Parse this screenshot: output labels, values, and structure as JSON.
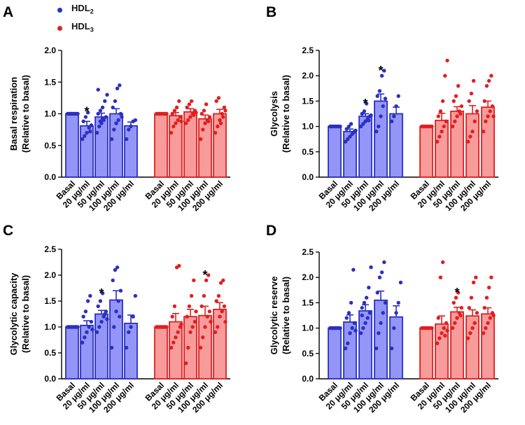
{
  "legend": [
    {
      "label": "HDL",
      "sub": "2",
      "color": "#2b2fc2"
    },
    {
      "label": "HDL",
      "sub": "3",
      "color": "#e11f1f"
    }
  ],
  "colors": {
    "hdl2_fill": "#9396f6",
    "hdl2_edge": "#2b2fc2",
    "hdl3_fill": "#f79b9b",
    "hdl3_edge": "#e11f1f"
  },
  "chart_data": [
    {
      "panel": "A",
      "type": "bar",
      "ylabel": [
        "Basal respiration",
        "(Relative to basal)"
      ],
      "ylim": [
        0,
        2.0
      ],
      "yticks": [
        "0.0",
        "0.5",
        "1.0",
        "1.5",
        "2.0"
      ],
      "categories": [
        "Basal",
        "20 μg/ml",
        "50 μg/ml",
        "100 μg/ml",
        "200 μg/ml"
      ],
      "series": [
        {
          "name": "HDL2",
          "values": [
            1.0,
            0.81,
            0.95,
            1.0,
            0.81
          ],
          "errors": [
            0.01,
            0.07,
            0.06,
            0.08,
            0.06
          ],
          "significant": [
            false,
            true,
            false,
            false,
            false
          ],
          "points": [
            [
              1.0,
              1.0,
              1.0,
              1.0,
              1.0,
              1.0,
              1.0,
              1.0,
              1.0,
              1.0
            ],
            [
              0.6,
              0.65,
              0.7,
              0.78,
              0.82,
              0.88,
              0.95,
              1.02,
              0.72
            ],
            [
              0.7,
              0.8,
              0.85,
              0.9,
              0.95,
              1.0,
              1.05,
              1.1,
              1.2,
              1.3,
              1.38,
              0.88,
              0.92
            ],
            [
              0.6,
              0.75,
              0.85,
              0.9,
              1.0,
              1.1,
              1.2,
              1.4,
              1.45,
              0.95
            ],
            [
              0.6,
              0.75,
              0.8,
              0.88,
              0.9
            ]
          ]
        },
        {
          "name": "HDL3",
          "values": [
            1.0,
            0.97,
            1.03,
            0.92,
            1.0
          ],
          "errors": [
            0.01,
            0.05,
            0.05,
            0.06,
            0.07
          ],
          "significant": [
            false,
            false,
            false,
            false,
            false
          ],
          "points": [
            [
              1.0,
              1.0,
              1.0,
              1.0,
              1.0,
              1.0,
              1.0,
              1.0,
              1.0,
              1.0
            ],
            [
              0.7,
              0.8,
              0.85,
              0.9,
              0.95,
              1.0,
              1.05,
              1.1,
              1.2,
              0.88
            ],
            [
              0.85,
              0.9,
              0.95,
              1.0,
              1.05,
              1.1,
              1.15,
              1.2,
              0.98,
              1.02
            ],
            [
              0.6,
              0.75,
              0.85,
              0.9,
              0.95,
              1.0,
              1.05,
              1.15,
              0.88
            ],
            [
              0.7,
              0.8,
              0.9,
              1.0,
              1.1,
              1.2,
              1.25,
              0.85,
              0.95,
              1.05
            ]
          ]
        }
      ]
    },
    {
      "panel": "B",
      "type": "bar",
      "ylabel": [
        "Glycolysis",
        "(Relative to basal)"
      ],
      "ylim": [
        0,
        2.5
      ],
      "yticks": [
        "0.0",
        "0.5",
        "1.0",
        "1.5",
        "2.0",
        "2.5"
      ],
      "categories": [
        "Basal",
        "20 μg/ml",
        "50 μg/ml",
        "100 μg/ml",
        "200 μg/ml"
      ],
      "series": [
        {
          "name": "HDL2",
          "values": [
            1.0,
            0.9,
            1.2,
            1.5,
            1.25
          ],
          "errors": [
            0.01,
            0.05,
            0.05,
            0.14,
            0.13
          ],
          "significant": [
            false,
            false,
            true,
            true,
            false
          ],
          "points": [
            [
              1.0,
              1.0,
              1.0,
              1.0,
              1.0,
              1.0,
              1.0,
              1.0,
              1.0,
              1.0
            ],
            [
              0.7,
              0.75,
              0.8,
              0.85,
              0.9,
              0.95,
              1.0,
              1.05,
              0.88,
              0.92
            ],
            [
              1.0,
              1.05,
              1.1,
              1.15,
              1.2,
              1.25,
              1.3,
              1.45,
              1.12,
              1.22
            ],
            [
              0.9,
              1.0,
              1.2,
              1.4,
              1.55,
              1.6,
              1.7,
              2.0,
              2.1
            ],
            [
              1.1,
              1.2,
              1.4,
              1.6
            ]
          ]
        },
        {
          "name": "HDL3",
          "values": [
            1.0,
            1.12,
            1.3,
            1.25,
            1.38
          ],
          "errors": [
            0.01,
            0.14,
            0.09,
            0.16,
            0.12
          ],
          "significant": [
            false,
            false,
            false,
            false,
            false
          ],
          "points": [
            [
              1.0,
              1.0,
              1.0,
              1.0,
              1.0,
              1.0,
              1.0,
              1.0,
              1.0,
              1.0
            ],
            [
              0.7,
              0.8,
              0.9,
              1.0,
              1.1,
              1.2,
              1.3,
              1.5,
              2.0,
              2.3
            ],
            [
              1.0,
              1.1,
              1.2,
              1.3,
              1.4,
              1.5,
              1.6,
              1.8,
              1.25
            ],
            [
              0.7,
              0.8,
              0.9,
              1.1,
              1.3,
              1.5,
              1.65,
              1.9
            ],
            [
              0.9,
              1.1,
              1.2,
              1.3,
              1.4,
              1.5,
              1.8,
              1.9,
              2.0,
              1.2
            ]
          ]
        }
      ]
    },
    {
      "panel": "C",
      "type": "bar",
      "ylabel": [
        "Glycolytic capacity",
        "(Relative to basal)"
      ],
      "ylim": [
        0,
        2.5
      ],
      "yticks": [
        "0.0",
        "0.5",
        "1.0",
        "1.5",
        "2.0",
        "2.5"
      ],
      "categories": [
        "Basal",
        "20 μg/ml",
        "50 μg/ml",
        "100 μg/ml",
        "200 μg/ml"
      ],
      "series": [
        {
          "name": "HDL2",
          "values": [
            1.0,
            1.03,
            1.25,
            1.52,
            1.07
          ],
          "errors": [
            0.01,
            0.09,
            0.07,
            0.18,
            0.16
          ],
          "significant": [
            false,
            false,
            true,
            false,
            false
          ],
          "points": [
            [
              1.0,
              1.0,
              1.0,
              1.0,
              1.0,
              1.0,
              1.0,
              1.0,
              1.0,
              1.0
            ],
            [
              0.7,
              0.8,
              0.9,
              1.0,
              1.1,
              1.2,
              1.3,
              1.5,
              1.6,
              0.95
            ],
            [
              0.9,
              1.0,
              1.1,
              1.2,
              1.3,
              1.4,
              1.5,
              1.65,
              1.25,
              1.15
            ],
            [
              0.6,
              1.0,
              1.3,
              1.5,
              1.7,
              1.9,
              2.1,
              2.15,
              1.2
            ],
            [
              0.6,
              0.9,
              1.0,
              1.2,
              1.6
            ]
          ]
        },
        {
          "name": "HDL3",
          "values": [
            1.0,
            1.1,
            1.2,
            1.22,
            1.34
          ],
          "errors": [
            0.01,
            0.16,
            0.14,
            0.18,
            0.13
          ],
          "significant": [
            false,
            false,
            false,
            true,
            false
          ],
          "points": [
            [
              1.0,
              1.0,
              1.0,
              1.0,
              1.0,
              1.0,
              1.0,
              1.0,
              1.0,
              1.0
            ],
            [
              0.6,
              0.7,
              0.8,
              0.9,
              1.0,
              1.2,
              1.4,
              2.15,
              2.18,
              1.05
            ],
            [
              0.3,
              0.6,
              0.9,
              1.0,
              1.1,
              1.2,
              1.4,
              1.6,
              1.9,
              1.3
            ],
            [
              0.6,
              0.8,
              1.0,
              1.2,
              1.3,
              1.4,
              1.6,
              1.9,
              2.0,
              1.1
            ],
            [
              0.9,
              1.0,
              1.2,
              1.3,
              1.4,
              1.5,
              1.6,
              1.85,
              1.9,
              1.1
            ]
          ]
        }
      ]
    },
    {
      "panel": "D",
      "type": "bar",
      "ylabel": [
        "Glycolytic reserve",
        "(Relative to basal)"
      ],
      "ylim": [
        0,
        2.5
      ],
      "yticks": [
        "0.0",
        "0.5",
        "1.0",
        "1.5",
        "2.0",
        "2.5"
      ],
      "categories": [
        "Basal",
        "20 μg/ml",
        "50 μg/ml",
        "100 μg/ml",
        "200 μg/ml"
      ],
      "series": [
        {
          "name": "HDL2",
          "values": [
            1.0,
            1.12,
            1.34,
            1.55,
            1.22
          ],
          "errors": [
            0.01,
            0.14,
            0.12,
            0.18,
            0.22
          ],
          "significant": [
            false,
            false,
            false,
            false,
            false
          ],
          "points": [
            [
              1.0,
              1.0,
              1.0,
              1.0,
              1.0,
              1.0,
              1.0,
              1.0,
              1.0,
              1.0
            ],
            [
              0.6,
              0.7,
              0.9,
              1.0,
              1.1,
              1.2,
              1.3,
              1.5,
              2.15,
              0.95
            ],
            [
              0.9,
              1.0,
              1.1,
              1.2,
              1.3,
              1.4,
              1.5,
              1.6,
              1.8,
              2.2,
              1.25
            ],
            [
              0.6,
              0.9,
              1.1,
              1.3,
              1.5,
              1.7,
              2.0,
              2.1,
              2.3
            ],
            [
              0.6,
              1.0,
              1.3,
              1.5,
              1.9
            ]
          ]
        },
        {
          "name": "HDL3",
          "values": [
            1.0,
            1.08,
            1.32,
            1.24,
            1.28
          ],
          "errors": [
            0.01,
            0.16,
            0.09,
            0.12,
            0.12
          ],
          "significant": [
            false,
            false,
            true,
            false,
            false
          ],
          "points": [
            [
              1.0,
              1.0,
              1.0,
              1.0,
              1.0,
              1.0,
              1.0,
              1.0,
              1.0,
              1.0
            ],
            [
              0.7,
              0.8,
              0.9,
              1.0,
              1.1,
              1.2,
              2.0,
              2.3,
              0.85,
              0.95
            ],
            [
              1.0,
              1.1,
              1.2,
              1.3,
              1.4,
              1.5,
              1.6,
              1.7,
              1.25
            ],
            [
              0.8,
              0.9,
              1.0,
              1.1,
              1.3,
              1.4,
              1.6,
              1.9,
              2.0
            ],
            [
              0.9,
              1.0,
              1.1,
              1.2,
              1.3,
              1.4,
              1.6,
              1.8,
              2.0,
              1.25
            ]
          ]
        }
      ]
    }
  ]
}
